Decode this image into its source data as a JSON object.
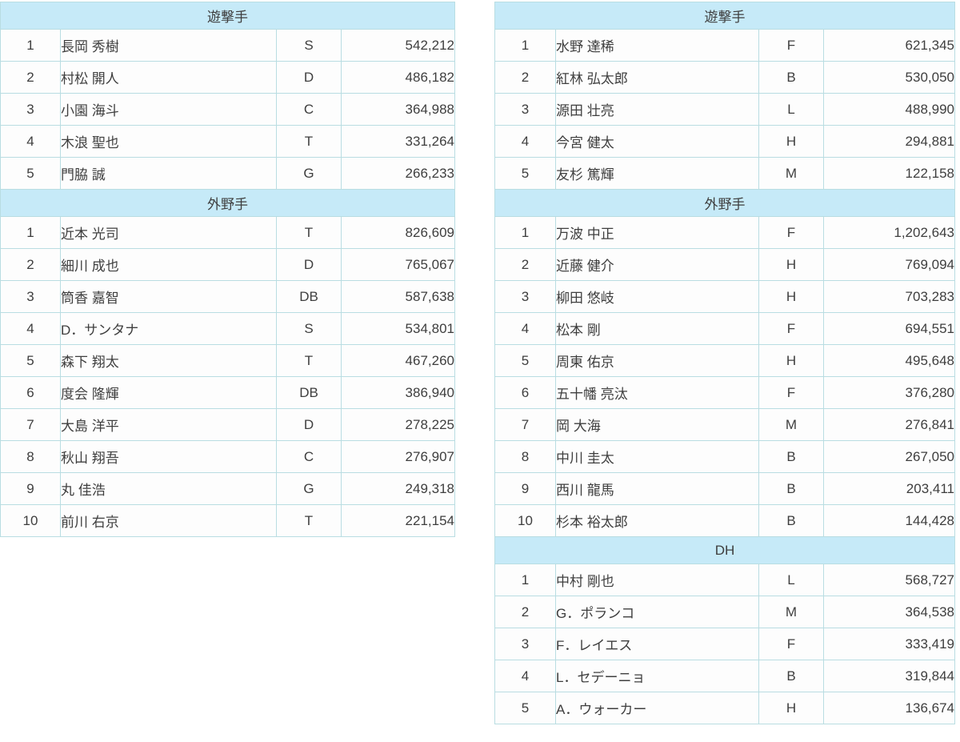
{
  "colors": {
    "header_bg": "#c6eaf8",
    "border": "#b9dde2",
    "row_bg": "#fdfdfd",
    "text": "#3e3e3e"
  },
  "column_semantics": [
    "rank",
    "player_name",
    "team_initial",
    "vote_count"
  ],
  "tables": [
    {
      "id": "left-table",
      "sections": [
        {
          "title": "遊撃手",
          "rows": [
            [
              "1",
              "長岡 秀樹",
              "S",
              "542,212"
            ],
            [
              "2",
              "村松 開人",
              "D",
              "486,182"
            ],
            [
              "3",
              "小園 海斗",
              "C",
              "364,988"
            ],
            [
              "4",
              "木浪 聖也",
              "T",
              "331,264"
            ],
            [
              "5",
              "門脇 誠",
              "G",
              "266,233"
            ]
          ]
        },
        {
          "title": "外野手",
          "rows": [
            [
              "1",
              "近本 光司",
              "T",
              "826,609"
            ],
            [
              "2",
              "細川 成也",
              "D",
              "765,067"
            ],
            [
              "3",
              "筒香 嘉智",
              "DB",
              "587,638"
            ],
            [
              "4",
              "D．サンタナ",
              "S",
              "534,801"
            ],
            [
              "5",
              "森下 翔太",
              "T",
              "467,260"
            ],
            [
              "6",
              "度会 隆輝",
              "DB",
              "386,940"
            ],
            [
              "7",
              "大島 洋平",
              "D",
              "278,225"
            ],
            [
              "8",
              "秋山 翔吾",
              "C",
              "276,907"
            ],
            [
              "9",
              "丸 佳浩",
              "G",
              "249,318"
            ],
            [
              "10",
              "前川 右京",
              "T",
              "221,154"
            ]
          ]
        }
      ]
    },
    {
      "id": "right-table",
      "sections": [
        {
          "title": "遊撃手",
          "rows": [
            [
              "1",
              "水野 達稀",
              "F",
              "621,345"
            ],
            [
              "2",
              "紅林 弘太郎",
              "B",
              "530,050"
            ],
            [
              "3",
              "源田 壮亮",
              "L",
              "488,990"
            ],
            [
              "4",
              "今宮 健太",
              "H",
              "294,881"
            ],
            [
              "5",
              "友杉 篤輝",
              "M",
              "122,158"
            ]
          ]
        },
        {
          "title": "外野手",
          "rows": [
            [
              "1",
              "万波 中正",
              "F",
              "1,202,643"
            ],
            [
              "2",
              "近藤 健介",
              "H",
              "769,094"
            ],
            [
              "3",
              "柳田 悠岐",
              "H",
              "703,283"
            ],
            [
              "4",
              "松本 剛",
              "F",
              "694,551"
            ],
            [
              "5",
              "周東 佑京",
              "H",
              "495,648"
            ],
            [
              "6",
              "五十幡 亮汰",
              "F",
              "376,280"
            ],
            [
              "7",
              "岡 大海",
              "M",
              "276,841"
            ],
            [
              "8",
              "中川 圭太",
              "B",
              "267,050"
            ],
            [
              "9",
              "西川 龍馬",
              "B",
              "203,411"
            ],
            [
              "10",
              "杉本 裕太郎",
              "B",
              "144,428"
            ]
          ]
        },
        {
          "title": "DH",
          "rows": [
            [
              "1",
              "中村 剛也",
              "L",
              "568,727"
            ],
            [
              "2",
              "G．ポランコ",
              "M",
              "364,538"
            ],
            [
              "3",
              "F．レイエス",
              "F",
              "333,419"
            ],
            [
              "4",
              "L．セデーニョ",
              "B",
              "319,844"
            ],
            [
              "5",
              "A．ウォーカー",
              "H",
              "136,674"
            ]
          ]
        }
      ]
    }
  ]
}
